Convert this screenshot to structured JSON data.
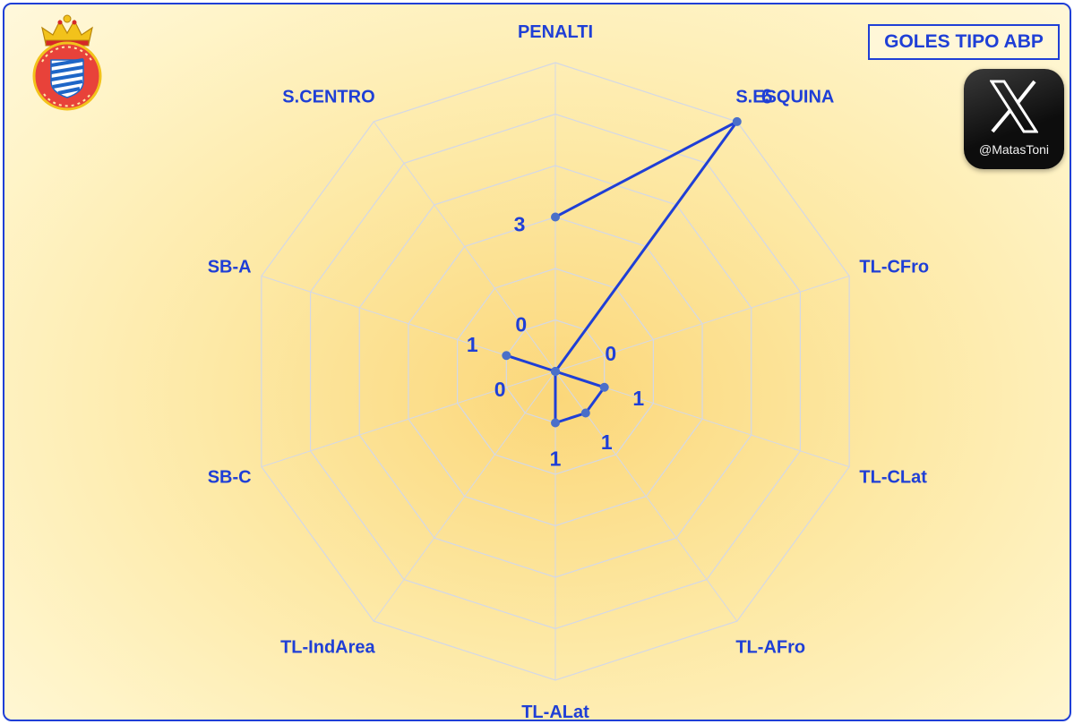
{
  "title": "GOLES TIPO ABP",
  "social": {
    "icon": "x-logo-icon",
    "handle": "@MatasToni"
  },
  "crest": {
    "icon": "rcd-espanyol-crest-icon",
    "text": "RCD ESPANYOL DE BARCELONA"
  },
  "colors": {
    "series": "#1f3fd6",
    "marker": "#4a6fc9",
    "grid": "#d4d8e6",
    "accent": "#1f3fd6"
  },
  "chart_data": {
    "type": "radar",
    "categories": [
      "PENALTI",
      "S.ESQUINA",
      "TL-CFro",
      "TL-CLat",
      "TL-AFro",
      "TL-ALat",
      "TL-IndArea",
      "SB-C",
      "SB-A",
      "S.CENTRO"
    ],
    "values": [
      3,
      6,
      0,
      1,
      1,
      1,
      null,
      0,
      1,
      0
    ],
    "data_labels": [
      "3",
      "6",
      "0",
      "1",
      "1",
      "1",
      "",
      "0",
      "1",
      "0"
    ],
    "rlim": [
      0,
      6
    ],
    "grid": true
  }
}
